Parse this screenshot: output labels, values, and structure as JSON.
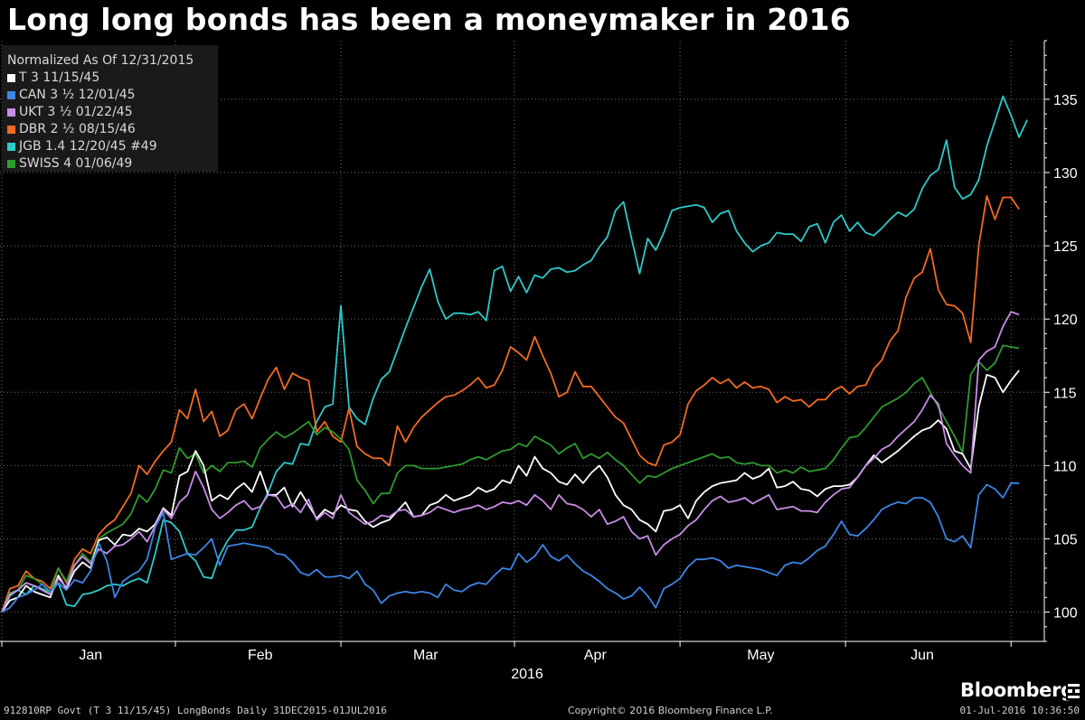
{
  "title": "Long long bonds has been a moneymaker in 2016",
  "legend": {
    "header": "Normalized As Of 12/31/2015",
    "items": [
      {
        "label": "T 3 11/15/45",
        "color": "#ffffff"
      },
      {
        "label": "CAN 3 ½ 12/01/45",
        "color": "#3d85e6"
      },
      {
        "label": "UKT 3 ½ 01/22/45",
        "color": "#c88de8"
      },
      {
        "label": "DBR 2 ½ 08/15/46",
        "color": "#f36a22"
      },
      {
        "label": "JGB 1.4 12/20/45 #49",
        "color": "#2ec9c9"
      },
      {
        "label": "SWISS 4 01/06/49",
        "color": "#2e9a2e"
      }
    ]
  },
  "footer": {
    "left": "912810RP Govt (T 3 11/15/45) LongBonds  Daily 31DEC2015-01JUL2016",
    "center": "Copyright© 2016 Bloomberg Finance L.P.",
    "right": "01-Jul-2016 10:36:50"
  },
  "brand": "Bloomberg",
  "chart_data": {
    "type": "line",
    "xlabel": "2016",
    "ylabel": "",
    "ylim": [
      98,
      139
    ],
    "yticks": [
      100,
      105,
      110,
      115,
      120,
      125,
      130,
      135
    ],
    "xlim": [
      0,
      128
    ],
    "month_labels": [
      {
        "label": "Jan",
        "x": 11
      },
      {
        "label": "Feb",
        "x": 32
      },
      {
        "label": "Mar",
        "x": 52.5
      },
      {
        "label": "Apr",
        "x": 73.5
      },
      {
        "label": "May",
        "x": 94
      },
      {
        "label": "Jun",
        "x": 114
      }
    ],
    "month_separators": [
      0,
      21.5,
      42,
      63.5,
      84,
      104.5,
      125
    ],
    "grid": true,
    "legend_position": "top-left",
    "series": [
      {
        "name": "JGB 1.4 12/20/45 #49",
        "color": "#2ec9c9",
        "values": [
          100,
          101.1,
          101.5,
          101.2,
          101.8,
          101.6,
          101.3,
          102.0,
          100.5,
          100.4,
          101.2,
          101.3,
          101.5,
          101.8,
          101.9,
          101.8,
          102.1,
          102.3,
          102.0,
          104.0,
          106.3,
          106.1,
          105.5,
          104.0,
          103.5,
          102.4,
          102.3,
          103.9,
          104.9,
          105.6,
          105.6,
          105.8,
          107.1,
          108.2,
          109.6,
          110.2,
          110.1,
          111.5,
          111.4,
          113.0,
          114.0,
          114.2,
          120.9,
          114.0,
          113.2,
          112.8,
          114.6,
          115.9,
          116.4,
          117.9,
          119.4,
          120.8,
          122.2,
          123.4,
          121.2,
          120.0,
          120.4,
          120.4,
          120.3,
          120.5,
          119.9,
          123.3,
          123.6,
          121.9,
          122.9,
          121.8,
          123.0,
          122.8,
          123.4,
          123.5,
          123.2,
          123.3,
          123.7,
          124.0,
          124.9,
          125.6,
          127.4,
          128.0,
          125.5,
          123.1,
          125.5,
          124.7,
          125.9,
          127.4,
          127.6,
          127.7,
          127.8,
          127.6,
          126.6,
          127.2,
          127.4,
          126.0,
          125.2,
          124.6,
          125.0,
          125.2,
          125.9,
          125.8,
          125.8,
          125.3,
          126.3,
          126.5,
          125.2,
          126.6,
          127.1,
          126.0,
          126.6,
          125.9,
          125.7,
          126.2,
          126.8,
          127.3,
          127.0,
          127.5,
          128.9,
          129.8,
          130.2,
          132.2,
          129.0,
          128.2,
          128.5,
          129.5,
          131.8,
          133.5,
          135.2,
          133.9,
          132.4,
          133.6
        ]
      },
      {
        "name": "DBR 2 ½ 08/15/46",
        "color": "#f36a22",
        "values": [
          100,
          101.6,
          101.8,
          102.8,
          102.3,
          102.1,
          101.6,
          103.0,
          102.0,
          103.6,
          104.3,
          104.0,
          105.3,
          105.9,
          106.3,
          107.2,
          108.1,
          110.0,
          109.4,
          110.3,
          111.0,
          111.6,
          113.8,
          113.2,
          115.2,
          113.0,
          113.7,
          112.0,
          112.4,
          113.8,
          114.2,
          113.2,
          114.6,
          115.9,
          116.7,
          115.2,
          116.3,
          116.0,
          115.8,
          112.3,
          113.0,
          112.0,
          111.6,
          113.9,
          111.3,
          110.8,
          110.5,
          110.5,
          110.0,
          112.7,
          111.6,
          112.6,
          113.3,
          113.8,
          114.3,
          114.7,
          114.8,
          115.1,
          115.5,
          116.0,
          115.3,
          115.5,
          116.5,
          118.1,
          117.7,
          117.2,
          118.8,
          117.5,
          116.3,
          114.7,
          115.0,
          116.4,
          115.4,
          115.4,
          114.7,
          114.0,
          113.3,
          112.9,
          111.8,
          110.7,
          110.2,
          110.0,
          111.4,
          111.6,
          112.1,
          114.2,
          115.1,
          115.5,
          116.0,
          115.6,
          115.9,
          115.3,
          115.7,
          115.3,
          115.4,
          115.2,
          114.3,
          114.7,
          114.4,
          114.5,
          114.0,
          114.5,
          114.5,
          115.1,
          115.4,
          114.9,
          115.4,
          115.5,
          116.6,
          117.2,
          118.5,
          119.2,
          121.5,
          122.8,
          123.2,
          124.8,
          122.0,
          121.0,
          120.9,
          120.4,
          118.4,
          125.0,
          128.4,
          126.8,
          128.3,
          128.3,
          127.5
        ]
      },
      {
        "name": "SWISS 4 01/06/49",
        "color": "#2e9a2e",
        "values": [
          100,
          101.3,
          101.5,
          102.5,
          102.3,
          101.9,
          101.3,
          103.0,
          102.1,
          103.2,
          104.0,
          103.4,
          105.0,
          105.4,
          105.7,
          106.0,
          106.7,
          108.0,
          107.5,
          108.4,
          109.7,
          109.5,
          111.2,
          110.5,
          110.8,
          109.5,
          110.0,
          109.6,
          110.2,
          110.2,
          110.3,
          109.9,
          111.2,
          111.8,
          112.3,
          111.9,
          112.2,
          112.6,
          113.0,
          112.1,
          112.6,
          112.3,
          111.8,
          111.1,
          109.0,
          108.3,
          107.4,
          108.1,
          108.1,
          109.5,
          110.0,
          110.0,
          109.8,
          109.8,
          109.8,
          109.9,
          110.0,
          110.1,
          110.4,
          110.6,
          110.4,
          110.7,
          111.0,
          111.1,
          111.5,
          111.3,
          112.0,
          111.7,
          111.4,
          110.8,
          111.2,
          111.5,
          110.5,
          110.8,
          110.5,
          110.9,
          110.4,
          110.0,
          109.4,
          108.8,
          109.3,
          109.2,
          109.5,
          109.8,
          110.0,
          110.2,
          110.4,
          110.6,
          110.8,
          110.5,
          110.6,
          110.2,
          110.1,
          110.2,
          110.0,
          110.0,
          109.5,
          109.7,
          109.5,
          109.9,
          109.6,
          109.7,
          109.8,
          110.4,
          111.2,
          111.9,
          112.0,
          112.6,
          113.3,
          114.0,
          114.3,
          114.6,
          115.0,
          115.6,
          116.0,
          115.0,
          114.0,
          113.0,
          112.0,
          110.9,
          116.2,
          117.1,
          116.5,
          117.0,
          118.2,
          118.1,
          118.0
        ]
      },
      {
        "name": "T 3 11/15/45",
        "color": "#ffffff",
        "values": [
          100,
          100.8,
          101.0,
          101.8,
          101.4,
          101.2,
          101.0,
          102.5,
          101.6,
          102.8,
          103.4,
          103.0,
          104.9,
          105.1,
          104.6,
          105.3,
          105.2,
          105.7,
          105.5,
          106.0,
          107.1,
          106.6,
          109.3,
          109.6,
          111.0,
          110.0,
          107.6,
          108.0,
          107.7,
          108.4,
          108.8,
          108.2,
          109.6,
          108.0,
          108.0,
          108.5,
          107.2,
          108.2,
          107.3,
          106.4,
          107.0,
          106.7,
          107.3,
          107.0,
          106.9,
          106.2,
          105.8,
          106.1,
          106.3,
          106.9,
          107.5,
          106.5,
          106.6,
          107.3,
          107.5,
          108.0,
          107.6,
          107.8,
          108.0,
          108.5,
          108.2,
          108.4,
          109.0,
          108.8,
          110.0,
          109.3,
          110.6,
          109.8,
          109.5,
          108.9,
          108.7,
          109.4,
          108.8,
          109.5,
          110.0,
          109.2,
          108.0,
          107.3,
          107.0,
          106.3,
          106.0,
          105.5,
          106.9,
          107.0,
          107.3,
          106.4,
          107.6,
          108.2,
          108.6,
          108.8,
          108.9,
          109.0,
          109.5,
          109.1,
          109.3,
          109.8,
          108.5,
          108.6,
          108.9,
          108.4,
          108.3,
          107.9,
          108.4,
          108.6,
          108.6,
          108.7,
          109.2,
          110.0,
          110.7,
          110.2,
          110.6,
          111.0,
          111.5,
          112.0,
          112.4,
          112.6,
          113.1,
          112.5,
          111.0,
          110.8,
          109.8,
          114.0,
          116.2,
          116.0,
          115.0,
          115.8,
          116.5
        ]
      },
      {
        "name": "UKT 3 ½ 01/22/45",
        "color": "#c88de8",
        "values": [
          100,
          101.2,
          101.5,
          102.0,
          101.8,
          101.5,
          101.2,
          102.3,
          101.7,
          103.2,
          103.8,
          103.3,
          104.3,
          104.0,
          104.5,
          104.6,
          105.0,
          105.5,
          104.8,
          105.9,
          107.0,
          106.4,
          107.5,
          108.0,
          109.6,
          108.5,
          107.0,
          106.4,
          106.8,
          107.3,
          107.6,
          107.0,
          107.2,
          108.0,
          107.9,
          107.1,
          107.4,
          106.8,
          107.7,
          106.3,
          106.8,
          106.4,
          108.0,
          106.8,
          106.4,
          106.0,
          106.2,
          106.6,
          106.5,
          106.9,
          107.0,
          106.5,
          106.6,
          106.8,
          107.2,
          107.0,
          106.8,
          107.0,
          107.1,
          107.3,
          107.0,
          107.2,
          107.5,
          107.4,
          107.6,
          107.3,
          108.0,
          107.6,
          107.0,
          108.0,
          107.4,
          107.3,
          107.0,
          106.5,
          107.0,
          106.0,
          106.2,
          106.5,
          105.5,
          105.0,
          105.2,
          103.9,
          104.6,
          105.0,
          105.3,
          105.9,
          106.3,
          107.0,
          107.6,
          107.9,
          107.5,
          107.6,
          107.8,
          107.4,
          107.7,
          108.0,
          107.0,
          107.1,
          107.2,
          106.9,
          106.9,
          106.8,
          107.5,
          108.0,
          108.4,
          108.5,
          109.2,
          110.0,
          110.5,
          111.1,
          111.4,
          112.0,
          112.5,
          113.0,
          113.8,
          114.8,
          114.2,
          111.5,
          110.7,
          110.0,
          109.5,
          117.2,
          117.8,
          118.1,
          119.5,
          120.5,
          120.3
        ]
      },
      {
        "name": "CAN 3 ½ 12/01/45",
        "color": "#3d85e6",
        "values": [
          100,
          100.3,
          101.0,
          101.2,
          101.5,
          101.9,
          101.4,
          102.0,
          101.5,
          102.2,
          102.0,
          102.8,
          104.7,
          103.5,
          101.0,
          102.1,
          102.5,
          102.8,
          103.6,
          105.8,
          106.8,
          103.6,
          103.8,
          104.0,
          103.9,
          104.4,
          105.0,
          103.2,
          104.5,
          104.6,
          104.7,
          104.6,
          104.5,
          104.4,
          104.0,
          103.9,
          103.4,
          102.7,
          102.5,
          102.9,
          102.4,
          102.4,
          102.5,
          102.3,
          102.8,
          101.9,
          101.5,
          100.6,
          101.1,
          101.3,
          101.4,
          101.3,
          101.4,
          101.3,
          101.0,
          101.9,
          101.5,
          101.4,
          101.8,
          102.0,
          101.9,
          102.5,
          103.0,
          102.9,
          104.0,
          103.4,
          103.8,
          104.6,
          103.8,
          103.5,
          103.9,
          103.3,
          102.8,
          102.5,
          102.1,
          101.6,
          101.3,
          100.9,
          101.1,
          101.7,
          101.1,
          100.3,
          101.6,
          101.9,
          102.3,
          103.1,
          103.6,
          103.6,
          103.7,
          103.5,
          103.0,
          103.2,
          103.1,
          103.0,
          102.9,
          102.7,
          102.5,
          103.2,
          103.4,
          103.3,
          103.7,
          104.2,
          104.5,
          105.3,
          106.2,
          105.3,
          105.2,
          105.7,
          106.3,
          107.0,
          107.3,
          107.5,
          107.4,
          107.8,
          107.8,
          107.5,
          106.5,
          105.0,
          104.8,
          105.2,
          104.4,
          108.0,
          108.7,
          108.4,
          107.8,
          108.8,
          108.8
        ]
      }
    ]
  }
}
